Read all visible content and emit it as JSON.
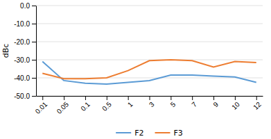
{
  "chart_data": {
    "type": "line",
    "categories": [
      "0.01",
      "0.05",
      "0.1",
      "0.5",
      "1",
      "3",
      "5",
      "7",
      "9",
      "10",
      "12"
    ],
    "series": [
      {
        "name": "F2",
        "color": "#5b9bd5",
        "values": [
          -31.0,
          -41.5,
          -43.0,
          -43.5,
          -42.5,
          -41.5,
          -38.5,
          -38.5,
          -39.0,
          -39.5,
          -42.5
        ]
      },
      {
        "name": "F3",
        "color": "#ed7d31",
        "values": [
          -37.5,
          -40.5,
          -40.5,
          -40.0,
          -36.0,
          -30.5,
          -30.0,
          -30.5,
          -34.0,
          -31.0,
          -31.5
        ]
      }
    ],
    "ylabel": "dBc",
    "ylim": [
      -50,
      0
    ],
    "yticks": [
      {
        "value": 0,
        "label": "0.0"
      },
      {
        "value": -10,
        "label": "-10.0"
      },
      {
        "value": -20,
        "label": "-20.0"
      },
      {
        "value": -30,
        "label": "-30.0"
      },
      {
        "value": -40,
        "label": "-40.0"
      },
      {
        "value": -50,
        "label": "-50.0"
      }
    ],
    "grid": true,
    "legend": "bottom"
  }
}
